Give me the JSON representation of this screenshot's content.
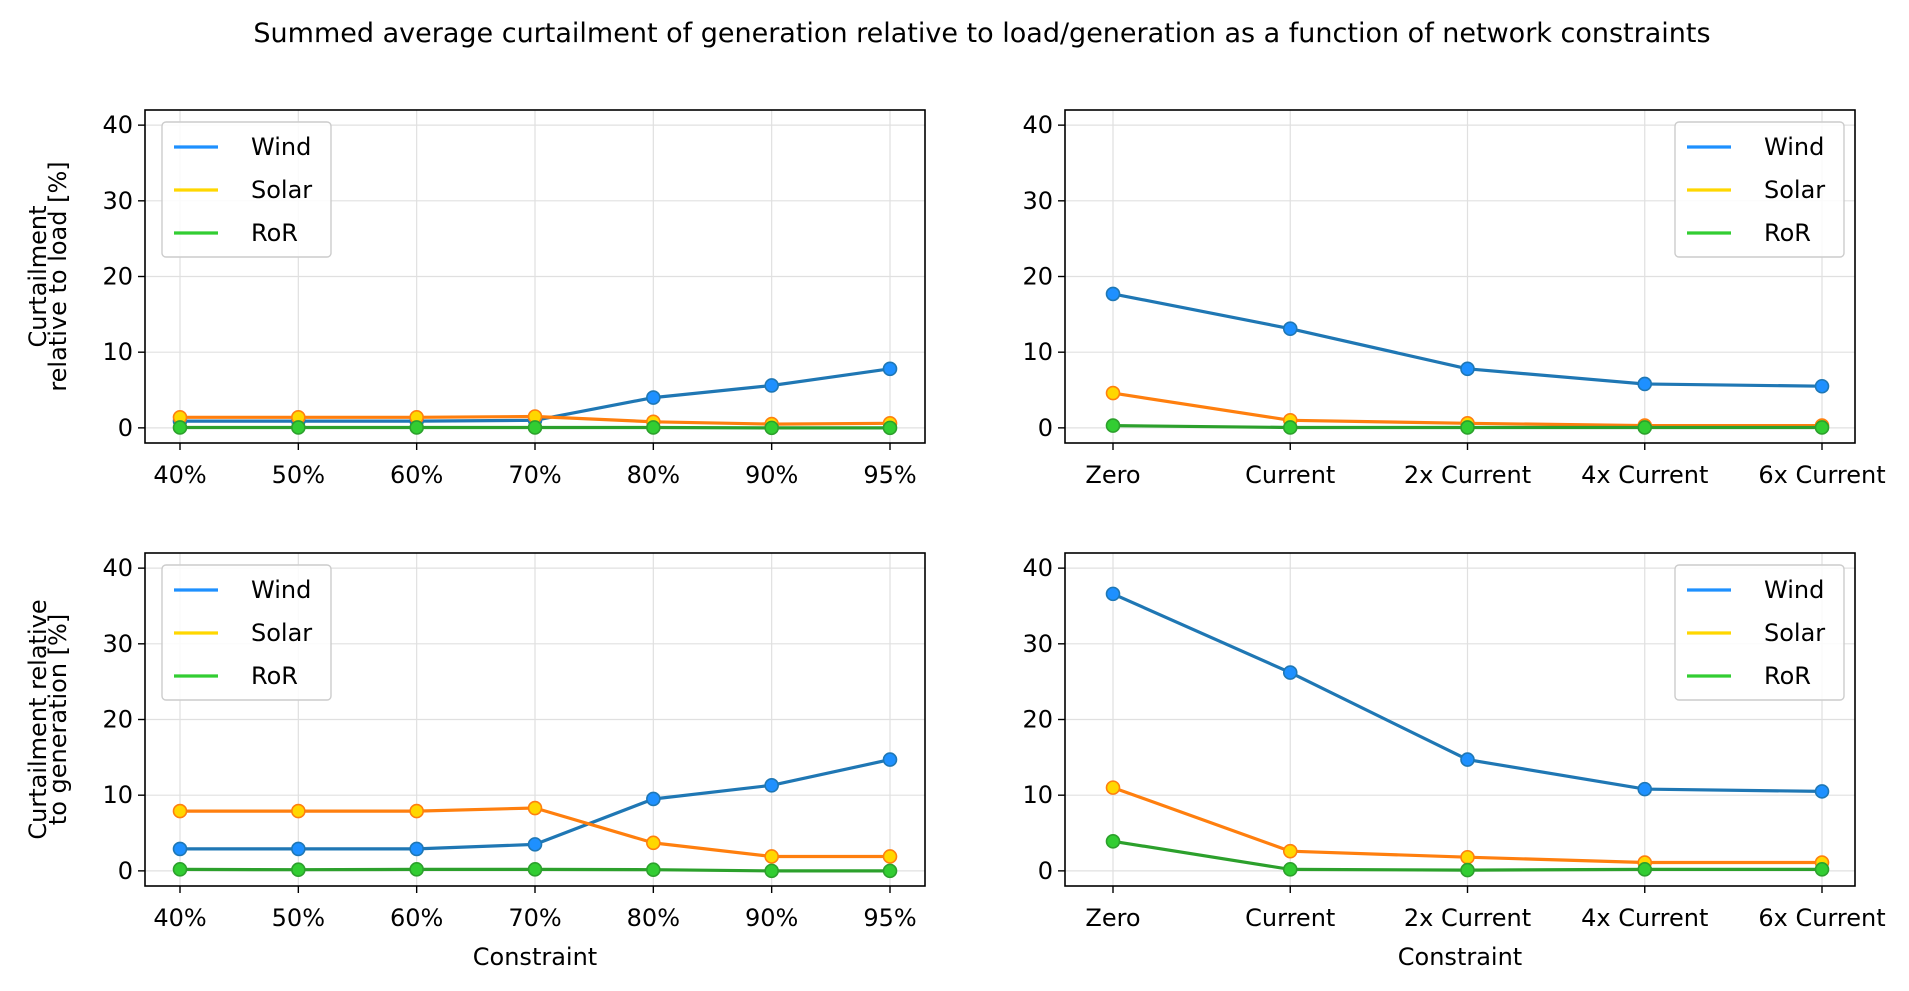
{
  "title": "Summed average curtailment of generation relative to load/generation as a function of network constraints",
  "colors": {
    "wind_line": "#1f77b4",
    "solar_line": "#ff7f0e",
    "ror_line": "#2ca02c",
    "wind_marker": "#1e90ff",
    "solar_marker": "#ffd700",
    "ror_marker": "#32cd32",
    "grid": "#e0e0e0"
  },
  "chart_data": [
    {
      "type": "line",
      "categories": [
        "40%",
        "50%",
        "60%",
        "70%",
        "80%",
        "90%",
        "95%"
      ],
      "xlabel": "",
      "ylabel": "Curtailment\nrelative to load [%]",
      "ylim": [
        -2,
        42
      ],
      "yticks": [
        0,
        10,
        20,
        30,
        40
      ],
      "grid": true,
      "legend": "upper left",
      "series": [
        {
          "name": "Wind",
          "values": [
            0.9,
            0.9,
            0.9,
            1.0,
            4.0,
            5.6,
            7.8
          ]
        },
        {
          "name": "Solar",
          "values": [
            1.4,
            1.4,
            1.4,
            1.5,
            0.8,
            0.5,
            0.6
          ]
        },
        {
          "name": "RoR",
          "values": [
            0.05,
            0.05,
            0.05,
            0.05,
            0.05,
            0.0,
            0.0
          ]
        }
      ]
    },
    {
      "type": "line",
      "categories": [
        "Zero",
        "Current",
        "2x Current",
        "4x Current",
        "6x Current"
      ],
      "xlabel": "",
      "ylabel": "",
      "ylim": [
        -2,
        42
      ],
      "yticks": [
        0,
        10,
        20,
        30,
        40
      ],
      "grid": true,
      "legend": "upper right",
      "series": [
        {
          "name": "Wind",
          "values": [
            17.7,
            13.1,
            7.8,
            5.8,
            5.5
          ]
        },
        {
          "name": "Solar",
          "values": [
            4.6,
            1.0,
            0.6,
            0.3,
            0.3
          ]
        },
        {
          "name": "RoR",
          "values": [
            0.3,
            0.05,
            0.05,
            0.05,
            0.05
          ]
        }
      ]
    },
    {
      "type": "line",
      "categories": [
        "40%",
        "50%",
        "60%",
        "70%",
        "80%",
        "90%",
        "95%"
      ],
      "xlabel": "Constraint",
      "ylabel": "Curtailment relative\nto generation [%]",
      "ylim": [
        -2,
        42
      ],
      "yticks": [
        0,
        10,
        20,
        30,
        40
      ],
      "grid": true,
      "legend": "upper left",
      "series": [
        {
          "name": "Wind",
          "values": [
            2.9,
            2.9,
            2.9,
            3.5,
            9.5,
            11.3,
            14.7
          ]
        },
        {
          "name": "Solar",
          "values": [
            7.9,
            7.9,
            7.9,
            8.3,
            3.7,
            1.9,
            1.9
          ]
        },
        {
          "name": "RoR",
          "values": [
            0.2,
            0.15,
            0.2,
            0.2,
            0.15,
            0.0,
            0.0
          ]
        }
      ]
    },
    {
      "type": "line",
      "categories": [
        "Zero",
        "Current",
        "2x Current",
        "4x Current",
        "6x Current"
      ],
      "xlabel": "Constraint",
      "ylabel": "",
      "ylim": [
        -2,
        42
      ],
      "yticks": [
        0,
        10,
        20,
        30,
        40
      ],
      "grid": true,
      "legend": "upper right",
      "series": [
        {
          "name": "Wind",
          "values": [
            36.6,
            26.2,
            14.7,
            10.8,
            10.5
          ]
        },
        {
          "name": "Solar",
          "values": [
            11.0,
            2.6,
            1.8,
            1.1,
            1.1
          ]
        },
        {
          "name": "RoR",
          "values": [
            3.9,
            0.2,
            0.1,
            0.2,
            0.2
          ]
        }
      ]
    }
  ]
}
